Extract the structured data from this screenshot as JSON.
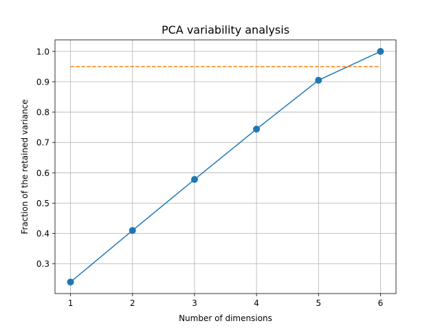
{
  "chart_data": {
    "type": "line",
    "title": "PCA variability analysis",
    "xlabel": "Number of dimensions",
    "ylabel": "Fraction of the retained variance",
    "xlim": [
      0.75,
      6.25
    ],
    "ylim": [
      0.202,
      1.038
    ],
    "xticks": [
      1,
      2,
      3,
      4,
      5,
      6
    ],
    "yticks": [
      0.3,
      0.4,
      0.5,
      0.6,
      0.7,
      0.8,
      0.9,
      1.0
    ],
    "ytick_labels": [
      "0.3",
      "0.4",
      "0.5",
      "0.6",
      "0.7",
      "0.8",
      "0.9",
      "1.0"
    ],
    "grid": true,
    "series": [
      {
        "x": [
          1,
          2,
          3,
          4,
          5,
          6
        ],
        "values": [
          0.24,
          0.41,
          0.578,
          0.744,
          0.905,
          1.0
        ],
        "color": "#1f77b4",
        "style": "solid",
        "marker": "circle"
      },
      {
        "x": [
          1,
          6
        ],
        "values": [
          0.95,
          0.95
        ],
        "color": "#ff7f0e",
        "style": "dashed",
        "marker": "none"
      }
    ]
  }
}
